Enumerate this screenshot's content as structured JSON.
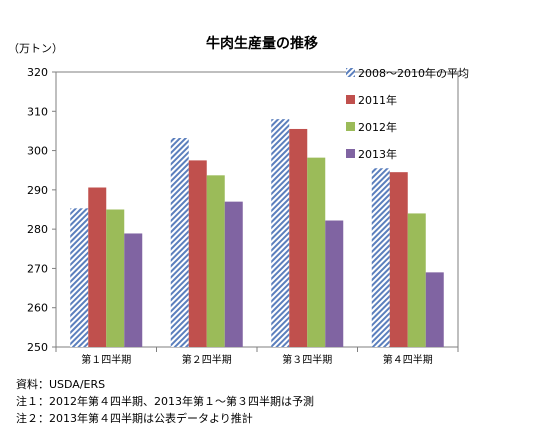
{
  "chart_data": {
    "type": "bar",
    "title": "牛肉生産量の推移",
    "ylabel": "（万トン）",
    "xlabel": "",
    "ylim": [
      250,
      320
    ],
    "yticks": [
      250,
      260,
      270,
      280,
      290,
      300,
      310,
      320
    ],
    "categories": [
      "第１四半期",
      "第２四半期",
      "第３四半期",
      "第４四半期"
    ],
    "legend_position": "right",
    "grid": false,
    "series": [
      {
        "name": "2008～2010年の平均",
        "color": "#8eaad3",
        "pattern": "diagonal-hatch",
        "values": [
          285.3,
          303.2,
          308.0,
          295.5
        ]
      },
      {
        "name": "2011年",
        "color": "#c0504d",
        "pattern": "solid",
        "values": [
          290.6,
          297.5,
          305.5,
          294.5
        ]
      },
      {
        "name": "2012年",
        "color": "#9bbb59",
        "pattern": "solid",
        "values": [
          285.0,
          293.7,
          298.2,
          284.0
        ]
      },
      {
        "name": "2013年",
        "color": "#8064a2",
        "pattern": "solid",
        "values": [
          278.9,
          287.0,
          282.2,
          269.0
        ]
      }
    ]
  },
  "notes": {
    "source": "資料：USDA/ERS",
    "note1": "注１：2012年第４四半期、2013年第１～第３四半期は予測",
    "note2": "注２：2013年第４四半期は公表データより推計"
  }
}
